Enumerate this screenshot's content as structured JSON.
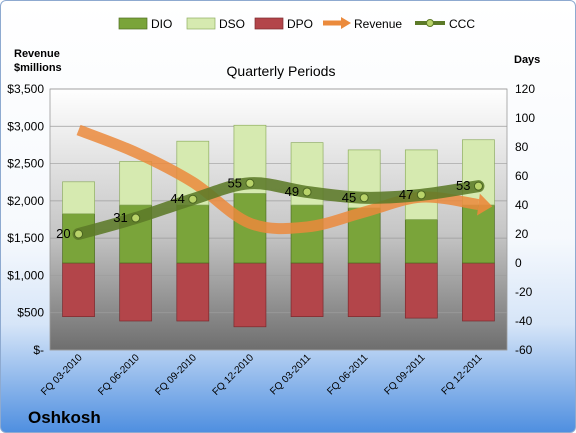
{
  "chart_data": {
    "type": "bar",
    "title": "Quarterly Periods",
    "company": "Oshkosh",
    "y_left_label_line1": "Revenue",
    "y_left_label_line2": "$millions",
    "y_right_label": "Days",
    "y_left_range": [
      0,
      3500
    ],
    "y_right_range": [
      -60,
      120
    ],
    "y_left_ticks": [
      "$-",
      "$500",
      "$1,000",
      "$1,500",
      "$2,000",
      "$2,500",
      "$3,000",
      "$3,500"
    ],
    "y_right_ticks": [
      "-60",
      "-40",
      "-20",
      "0",
      "20",
      "40",
      "60",
      "80",
      "100",
      "120"
    ],
    "categories": [
      "FQ 03-2010",
      "FQ 06-2010",
      "FQ 09-2010",
      "FQ 12-2010",
      "FQ 03-2011",
      "FQ 06-2011",
      "FQ 09-2011",
      "FQ 12-2011"
    ],
    "series": [
      {
        "name": "DIO",
        "axis": "right",
        "values": [
          34,
          40,
          40,
          48,
          40,
          38,
          30,
          40
        ]
      },
      {
        "name": "DSO",
        "axis": "right",
        "values": [
          22,
          30,
          44,
          47,
          43,
          40,
          48,
          45
        ]
      },
      {
        "name": "DPO",
        "axis": "right",
        "values": [
          -37,
          -40,
          -40,
          -44,
          -37,
          -37,
          -38,
          -40
        ]
      },
      {
        "name": "Revenue",
        "axis": "left",
        "values": [
          2950,
          2650,
          2250,
          1700,
          1650,
          1850,
          2050,
          1950
        ]
      },
      {
        "name": "CCC",
        "axis": "right",
        "values": [
          20,
          31,
          44,
          55,
          49,
          45,
          47,
          53
        ]
      }
    ],
    "ccc_labels": [
      "20",
      "31",
      "44",
      "55",
      "49",
      "45",
      "47",
      "53"
    ],
    "legend_position": "top",
    "grid": true,
    "colors": {
      "DIO": "#7aa43a",
      "DSO": "#d6eab0",
      "DPO": "#b3454a",
      "Revenue": "#eb8a3c",
      "CCC": "#5c7a28"
    }
  }
}
